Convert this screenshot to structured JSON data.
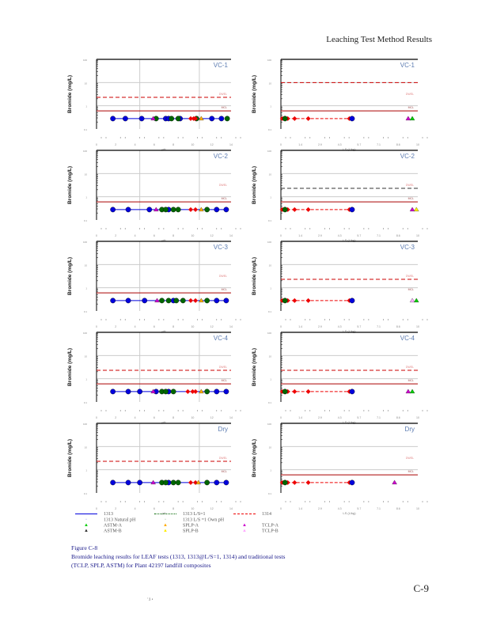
{
  "header": {
    "title": "Leaching Test Method Results"
  },
  "chart_data": [
    {
      "type": "scatter",
      "panel": "pH",
      "title": "VC-1",
      "ylabel": "Bromide (mg/L)",
      "xlabel": "pH",
      "xlim": [
        0,
        14
      ],
      "ylim": [
        0.1,
        100
      ],
      "yscale": "log",
      "mcl": 0.6,
      "dwel": 2.3,
      "ref_labels": [
        "DWEL",
        "MCL"
      ],
      "series": [
        {
          "name": "1313",
          "color": "#0000dd",
          "values": [
            [
              1.7,
              0.28
            ],
            [
              3.0,
              0.28
            ],
            [
              4.7,
              0.28
            ],
            [
              7.2,
              0.28
            ],
            [
              7.5,
              0.28
            ],
            [
              8.7,
              0.28
            ],
            [
              12.0,
              0.28
            ],
            [
              13.0,
              0.28
            ]
          ]
        },
        {
          "name": "1313 L/S=1",
          "color": "#006600",
          "values": [
            [
              6.2,
              0.28
            ],
            [
              7.8,
              0.28
            ],
            [
              8.5,
              0.28
            ],
            [
              10.4,
              0.28
            ],
            [
              13.6,
              0.28
            ]
          ]
        },
        {
          "name": "1314",
          "color": "#ee0000",
          "values": [
            [
              9.8,
              0.28
            ],
            [
              10.1,
              0.28
            ],
            [
              10.3,
              0.28
            ]
          ]
        },
        {
          "name": "TCLP-A",
          "color": "#cc00cc",
          "values": [
            [
              5.9,
              0.28
            ]
          ]
        },
        {
          "name": "SPLP-A",
          "color": "#ffaa00",
          "values": [
            [
              10.9,
              0.28
            ]
          ]
        }
      ]
    },
    {
      "type": "scatter",
      "panel": "LS",
      "title": "VC-1",
      "ylabel": "Bromide (mg/L)",
      "xlabel": "LS (L/kg)",
      "xlim": [
        0,
        10
      ],
      "ylim": [
        0.1,
        100
      ],
      "yscale": "log",
      "mcl": 0.6,
      "dwel": 10,
      "series": [
        {
          "name": "1314",
          "color": "#ee0000",
          "values": [
            [
              0.1,
              0.28
            ],
            [
              0.5,
              0.28
            ],
            [
              1.0,
              0.28
            ],
            [
              2.0,
              0.28
            ],
            [
              5.0,
              0.28
            ]
          ]
        },
        {
          "name": "1313 L/S=1",
          "color": "#006600",
          "values": [
            [
              0.3,
              0.28
            ]
          ]
        },
        {
          "name": "1313",
          "color": "#0000dd",
          "values": [
            [
              5.2,
              0.28
            ]
          ]
        },
        {
          "name": "TCLP-A",
          "color": "#cc00cc",
          "values": [
            [
              9.3,
              0.28
            ]
          ]
        },
        {
          "name": "ASTM-A",
          "color": "#00cc00",
          "values": [
            [
              9.6,
              0.28
            ]
          ]
        }
      ]
    },
    {
      "type": "scatter",
      "panel": "pH",
      "title": "VC-2",
      "ylabel": "Bromide (mg/L)",
      "xlabel": "pH",
      "xlim": [
        0,
        14
      ],
      "ylim": [
        0.1,
        100
      ],
      "yscale": "log",
      "mcl": 0.6,
      "series": [
        {
          "name": "1313",
          "color": "#0000dd",
          "values": [
            [
              1.7,
              0.28
            ],
            [
              3.3,
              0.28
            ],
            [
              5.5,
              0.28
            ],
            [
              7.5,
              0.28
            ],
            [
              12.5,
              0.28
            ],
            [
              13.5,
              0.28
            ]
          ]
        },
        {
          "name": "1313 L/S=1",
          "color": "#006600",
          "values": [
            [
              6.8,
              0.28
            ],
            [
              7.2,
              0.28
            ],
            [
              8.0,
              0.28
            ],
            [
              8.5,
              0.28
            ],
            [
              11.5,
              0.28
            ]
          ]
        },
        {
          "name": "1314",
          "color": "#ee0000",
          "values": [
            [
              9.8,
              0.28
            ],
            [
              10.3,
              0.28
            ]
          ]
        },
        {
          "name": "TCLP-A",
          "color": "#cc00cc",
          "values": [
            [
              6.2,
              0.28
            ]
          ]
        },
        {
          "name": "SPLP-A",
          "color": "#ffaa00",
          "values": [
            [
              10.9,
              0.28
            ]
          ]
        }
      ]
    },
    {
      "type": "scatter",
      "panel": "LS",
      "title": "VC-2",
      "ylabel": "Bromide (mg/L)",
      "xlabel": "LS (L/kg)",
      "xlim": [
        0,
        10
      ],
      "ylim": [
        0.1,
        100
      ],
      "yscale": "log",
      "mcl": 0.6,
      "dwel": 2.3,
      "dwel_style": "dashed-black",
      "series": [
        {
          "name": "1314",
          "color": "#ee0000",
          "values": [
            [
              0.1,
              0.28
            ],
            [
              0.5,
              0.28
            ],
            [
              1.0,
              0.28
            ],
            [
              2.0,
              0.28
            ],
            [
              5.0,
              0.28
            ]
          ]
        },
        {
          "name": "1313 L/S=1",
          "color": "#006600",
          "values": [
            [
              0.3,
              0.28
            ]
          ]
        },
        {
          "name": "1313",
          "color": "#0000dd",
          "values": [
            [
              5.2,
              0.28
            ]
          ]
        },
        {
          "name": "TCLP-A",
          "color": "#cc00cc",
          "values": [
            [
              9.6,
              0.28
            ]
          ]
        },
        {
          "name": "SPLP-B",
          "color": "#ffee00",
          "values": [
            [
              9.9,
              0.28
            ]
          ]
        }
      ]
    },
    {
      "type": "scatter",
      "panel": "pH",
      "title": "VC-3",
      "ylabel": "Bromide (mg/L)",
      "xlabel": "pH",
      "xlim": [
        0,
        14
      ],
      "ylim": [
        0.1,
        100
      ],
      "yscale": "log",
      "mcl": 0.6,
      "series": [
        {
          "name": "1313",
          "color": "#0000dd",
          "values": [
            [
              1.7,
              0.28
            ],
            [
              3.3,
              0.28
            ],
            [
              5.0,
              0.28
            ],
            [
              8.0,
              0.28
            ],
            [
              12.5,
              0.28
            ],
            [
              13.5,
              0.28
            ]
          ]
        },
        {
          "name": "1313 L/S=1",
          "color": "#006600",
          "values": [
            [
              6.8,
              0.28
            ],
            [
              7.5,
              0.28
            ],
            [
              8.3,
              0.28
            ],
            [
              9.0,
              0.28
            ],
            [
              11.5,
              0.28
            ]
          ]
        },
        {
          "name": "1314",
          "color": "#ee0000",
          "values": [
            [
              9.8,
              0.28
            ],
            [
              10.3,
              0.28
            ]
          ]
        },
        {
          "name": "TCLP-A",
          "color": "#cc00cc",
          "values": [
            [
              6.3,
              0.28
            ]
          ]
        },
        {
          "name": "SPLP-A",
          "color": "#ffaa00",
          "values": [
            [
              10.9,
              0.28
            ]
          ]
        }
      ]
    },
    {
      "type": "scatter",
      "panel": "LS",
      "title": "VC-3",
      "ylabel": "Bromide (mg/L)",
      "xlabel": "LS (L/kg)",
      "xlim": [
        0,
        10
      ],
      "ylim": [
        0.1,
        100
      ],
      "yscale": "log",
      "dwel": 2.3,
      "series": [
        {
          "name": "1314",
          "color": "#ee0000",
          "values": [
            [
              0.1,
              0.28
            ],
            [
              0.5,
              0.28
            ],
            [
              1.0,
              0.28
            ],
            [
              2.0,
              0.28
            ],
            [
              5.0,
              0.28
            ]
          ]
        },
        {
          "name": "1313 L/S=1",
          "color": "#006600",
          "values": [
            [
              0.3,
              0.28
            ]
          ]
        },
        {
          "name": "1313",
          "color": "#0000dd",
          "values": [
            [
              5.2,
              0.28
            ]
          ]
        },
        {
          "name": "TCLP-B",
          "color": "#ffaaff",
          "values": [
            [
              9.6,
              0.28
            ]
          ]
        },
        {
          "name": "ASTM-A",
          "color": "#00cc00",
          "values": [
            [
              9.9,
              0.28
            ]
          ]
        }
      ]
    },
    {
      "type": "scatter",
      "panel": "pH",
      "title": "VC-4",
      "ylabel": "Bromide (mg/L)",
      "xlabel": "pH",
      "xlim": [
        0,
        14
      ],
      "ylim": [
        0.1,
        100
      ],
      "yscale": "log",
      "mcl": 0.6,
      "dwel": 2.3,
      "series": [
        {
          "name": "1313",
          "color": "#0000dd",
          "values": [
            [
              1.7,
              0.28
            ],
            [
              3.3,
              0.28
            ],
            [
              4.5,
              0.28
            ],
            [
              6.2,
              0.28
            ],
            [
              7.5,
              0.28
            ],
            [
              12.5,
              0.28
            ],
            [
              13.5,
              0.28
            ]
          ]
        },
        {
          "name": "1313 L/S=1",
          "color": "#006600",
          "values": [
            [
              6.8,
              0.28
            ],
            [
              7.2,
              0.28
            ],
            [
              8.0,
              0.28
            ],
            [
              11.5,
              0.28
            ]
          ]
        },
        {
          "name": "1314",
          "color": "#ee0000",
          "values": [
            [
              9.5,
              0.28
            ],
            [
              10.0,
              0.28
            ],
            [
              10.3,
              0.28
            ]
          ]
        },
        {
          "name": "TCLP-A",
          "color": "#cc00cc",
          "values": [
            [
              5.9,
              0.28
            ]
          ]
        },
        {
          "name": "SPLP-A",
          "color": "#ffaa00",
          "values": [
            [
              10.9,
              0.28
            ]
          ]
        }
      ]
    },
    {
      "type": "scatter",
      "panel": "LS",
      "title": "VC-4",
      "ylabel": "Bromide (mg/L)",
      "xlabel": "LS (L/kg)",
      "xlim": [
        0,
        10
      ],
      "ylim": [
        0.1,
        100
      ],
      "yscale": "log",
      "mcl": 0.6,
      "dwel": 2.3,
      "series": [
        {
          "name": "1314",
          "color": "#ee0000",
          "values": [
            [
              0.1,
              0.28
            ],
            [
              0.5,
              0.28
            ],
            [
              1.0,
              0.28
            ],
            [
              2.0,
              0.28
            ],
            [
              5.0,
              0.28
            ]
          ]
        },
        {
          "name": "1313 L/S=1",
          "color": "#006600",
          "values": [
            [
              0.3,
              0.28
            ]
          ]
        },
        {
          "name": "1313",
          "color": "#0000dd",
          "values": [
            [
              5.2,
              0.28
            ]
          ]
        },
        {
          "name": "TCLP-A",
          "color": "#cc00cc",
          "values": [
            [
              9.3,
              0.28
            ]
          ]
        },
        {
          "name": "ASTM-A",
          "color": "#00cc00",
          "values": [
            [
              9.6,
              0.28
            ]
          ]
        }
      ]
    },
    {
      "type": "scatter",
      "panel": "pH",
      "title": "Dry",
      "ylabel": "Bromide (mg/L)",
      "xlabel": "pH",
      "xlim": [
        0,
        14
      ],
      "ylim": [
        0.1,
        100
      ],
      "yscale": "log",
      "dwel": 2.3,
      "series": [
        {
          "name": "1313",
          "color": "#0000dd",
          "values": [
            [
              1.7,
              0.28
            ],
            [
              3.3,
              0.28
            ],
            [
              4.5,
              0.28
            ],
            [
              7.5,
              0.28
            ],
            [
              12.5,
              0.28
            ],
            [
              13.5,
              0.28
            ]
          ]
        },
        {
          "name": "1313 L/S=1",
          "color": "#006600",
          "values": [
            [
              6.8,
              0.28
            ],
            [
              7.2,
              0.28
            ],
            [
              8.0,
              0.28
            ],
            [
              8.5,
              0.28
            ],
            [
              11.5,
              0.28
            ]
          ]
        },
        {
          "name": "1314",
          "color": "#ee0000",
          "values": [
            [
              9.8,
              0.28
            ],
            [
              10.3,
              0.28
            ]
          ]
        },
        {
          "name": "TCLP-A",
          "color": "#cc00cc",
          "values": [
            [
              5.9,
              0.28
            ]
          ]
        },
        {
          "name": "SPLP-A",
          "color": "#ffaa00",
          "values": [
            [
              10.6,
              0.28
            ]
          ]
        }
      ]
    },
    {
      "type": "scatter",
      "panel": "LS",
      "title": "Dry",
      "ylabel": "Bromide (mg/L)",
      "xlabel": "LS (L/kg)",
      "xlim": [
        0,
        10
      ],
      "ylim": [
        0.1,
        100
      ],
      "yscale": "log",
      "mcl": 0.6,
      "series": [
        {
          "name": "1314",
          "color": "#ee0000",
          "values": [
            [
              0.1,
              0.28
            ],
            [
              0.5,
              0.28
            ],
            [
              1.0,
              0.28
            ],
            [
              2.0,
              0.28
            ],
            [
              5.0,
              0.28
            ]
          ]
        },
        {
          "name": "1313 L/S=1",
          "color": "#006600",
          "values": [
            [
              0.3,
              0.28
            ]
          ]
        },
        {
          "name": "1313",
          "color": "#0000dd",
          "values": [
            [
              5.2,
              0.28
            ]
          ]
        },
        {
          "name": "TCLP-A",
          "color": "#cc00cc",
          "values": [
            [
              8.3,
              0.28
            ]
          ]
        }
      ]
    }
  ],
  "legend": [
    {
      "label": "1313",
      "color": "#0000dd",
      "style": "solid"
    },
    {
      "label": "1313 L/S=1",
      "color": "#006600",
      "style": "dotted"
    },
    {
      "label": "1314",
      "color": "#ee0000",
      "style": "dashed"
    },
    {
      "label": "1313 Natural pH",
      "color": "#0000dd",
      "style": "point"
    },
    {
      "label": "1313 L/S =1 Own pH",
      "color": "#006600",
      "style": "point"
    },
    {
      "label": "",
      "color": "",
      "style": "none"
    },
    {
      "label": "ASTM-A",
      "color": "#00cc00",
      "style": "triangle"
    },
    {
      "label": "SPLP-A",
      "color": "#ffaa00",
      "style": "triangle"
    },
    {
      "label": "TCLP-A",
      "color": "#cc00cc",
      "style": "triangle"
    },
    {
      "label": "ASTM-B",
      "color": "#333333",
      "style": "triangle"
    },
    {
      "label": "SPLP-B",
      "color": "#ffee00",
      "style": "triangle"
    },
    {
      "label": "TCLP-B",
      "color": "#ffaaff",
      "style": "triangle"
    }
  ],
  "caption": {
    "figure": "Figure C-8",
    "line1": "Bromide leaching results for LEAF tests (1313, 1313@L/S=1, 1314) and traditional tests",
    "line2": "(TCLP, SPLP, ASTM) for Plant 42197 landfill composites"
  },
  "page_number": "C-9",
  "footer": "' ž •"
}
